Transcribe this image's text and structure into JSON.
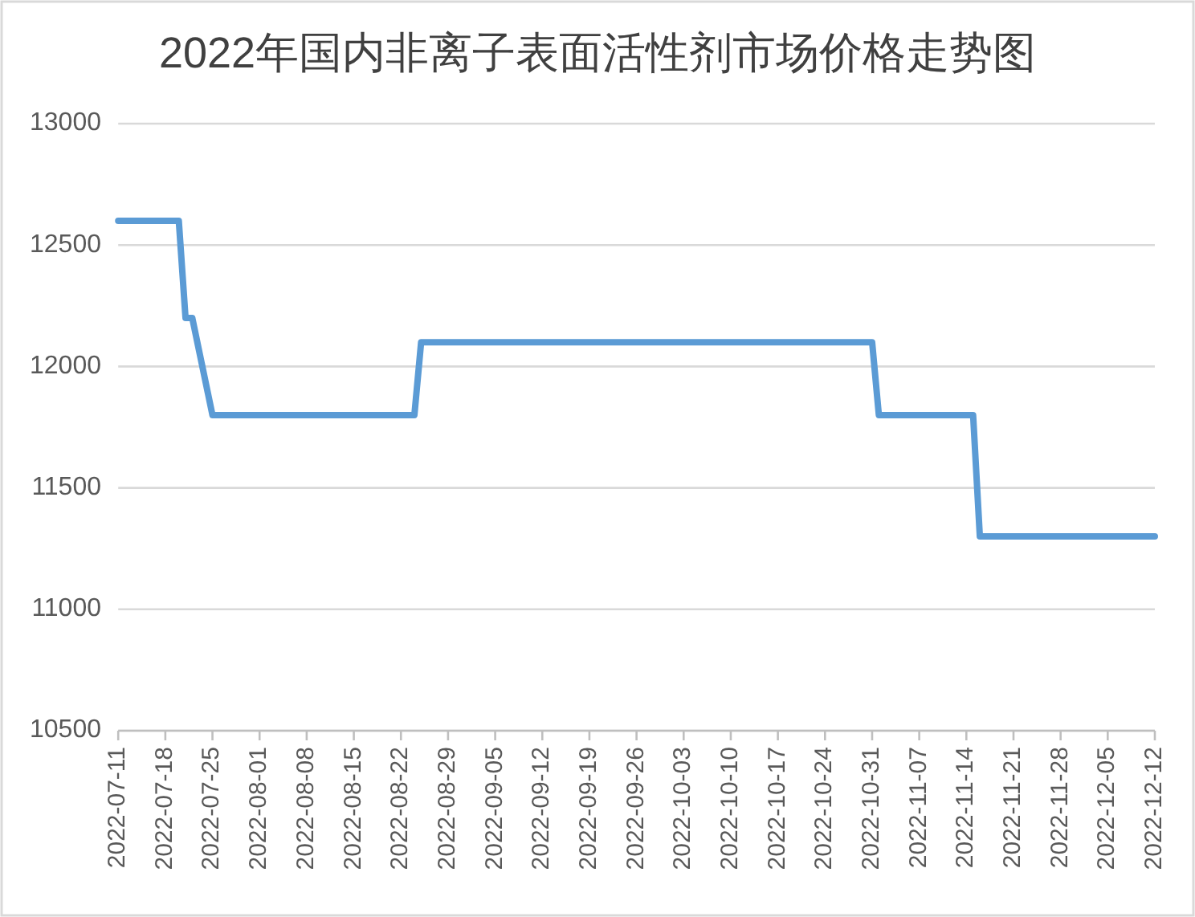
{
  "chart_data": {
    "type": "line",
    "title": "2022年国内非离子表面活性剂市场价格走势图",
    "x": [
      "2022-07-11",
      "2022-07-20",
      "2022-07-21",
      "2022-07-22",
      "2022-07-25",
      "2022-08-24",
      "2022-08-25",
      "2022-10-31",
      "2022-11-01",
      "2022-11-15",
      "2022-11-16",
      "2022-12-12"
    ],
    "values": [
      12600,
      12600,
      12200,
      12200,
      11800,
      11800,
      12100,
      12100,
      11800,
      11800,
      11300,
      11300
    ],
    "color": "#5b9bd5",
    "xlim": [
      "2022-07-11",
      "2022-12-12"
    ],
    "xticks": [
      "2022-07-11",
      "2022-07-18",
      "2022-07-25",
      "2022-08-01",
      "2022-08-08",
      "2022-08-15",
      "2022-08-22",
      "2022-08-29",
      "2022-09-05",
      "2022-09-12",
      "2022-09-19",
      "2022-09-26",
      "2022-10-03",
      "2022-10-10",
      "2022-10-17",
      "2022-10-24",
      "2022-10-31",
      "2022-11-07",
      "2022-11-14",
      "2022-11-21",
      "2022-11-28",
      "2022-12-05",
      "2022-12-12"
    ],
    "ylim": [
      10500,
      13000
    ],
    "yticks": [
      10500,
      11000,
      11500,
      12000,
      12500,
      13000
    ],
    "grid": "y"
  }
}
